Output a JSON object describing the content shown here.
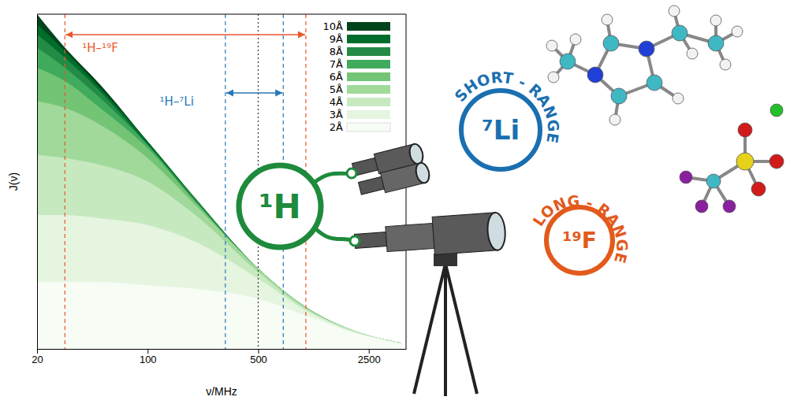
{
  "chart_data": {
    "type": "area",
    "x_label": "ν/MHz",
    "y_label": "J(ν)",
    "log": "x",
    "tick_labels": "x",
    "legend": "top-right",
    "x": [
      20,
      30,
      50,
      100,
      200,
      500,
      1000,
      2000,
      4000
    ],
    "xlim": [
      20,
      4300
    ],
    "xticks": [
      20,
      100,
      500,
      2500
    ],
    "ylim": [
      0,
      1
    ],
    "series": [
      {
        "name": "10Å",
        "color": "#00441b",
        "values": [
          1.0,
          0.9,
          0.79,
          0.62,
          0.45,
          0.24,
          0.125,
          0.055,
          0.018
        ]
      },
      {
        "name": "9Å",
        "color": "#006d2c",
        "values": [
          0.97,
          0.89,
          0.78,
          0.62,
          0.45,
          0.24,
          0.125,
          0.055,
          0.018
        ]
      },
      {
        "name": "8Å",
        "color": "#238b45",
        "values": [
          0.94,
          0.87,
          0.77,
          0.61,
          0.45,
          0.24,
          0.125,
          0.055,
          0.018
        ]
      },
      {
        "name": "7Å",
        "color": "#41ab5d",
        "values": [
          0.9,
          0.84,
          0.75,
          0.61,
          0.44,
          0.24,
          0.125,
          0.055,
          0.018
        ]
      },
      {
        "name": "6Å",
        "color": "#74c476",
        "values": [
          0.84,
          0.8,
          0.72,
          0.6,
          0.44,
          0.24,
          0.125,
          0.055,
          0.018
        ]
      },
      {
        "name": "5Å",
        "color": "#a1d99b",
        "values": [
          0.74,
          0.72,
          0.67,
          0.57,
          0.43,
          0.24,
          0.125,
          0.055,
          0.018
        ]
      },
      {
        "name": "4Å",
        "color": "#c7e9c0",
        "values": [
          0.58,
          0.57,
          0.55,
          0.5,
          0.4,
          0.23,
          0.12,
          0.055,
          0.018
        ]
      },
      {
        "name": "3Å",
        "color": "#e5f5e0",
        "values": [
          0.4,
          0.4,
          0.39,
          0.37,
          0.32,
          0.21,
          0.115,
          0.05,
          0.017
        ]
      },
      {
        "name": "2Å",
        "color": "#f7fcf5",
        "values": [
          0.2,
          0.2,
          0.2,
          0.19,
          0.18,
          0.15,
          0.1,
          0.05,
          0.016
        ]
      }
    ],
    "annotations": [
      {
        "text": "¹H–¹⁹F",
        "color": "#e8572a",
        "line_style": "dashed",
        "x": [
          30,
          1000
        ]
      },
      {
        "text": "¹H–⁷Li",
        "color": "#2878b5",
        "line_style": "dashed",
        "x": [
          310,
          720
        ]
      }
    ],
    "reference_lines": [
      {
        "x": 500,
        "color": "#333333",
        "line_style": "dotted"
      }
    ]
  },
  "illustration": {
    "center": {
      "label": "¹H",
      "color": "#1e8a3c"
    },
    "probes": [
      {
        "label": "⁷Li",
        "caption": "SHORT - RANGE",
        "color": "#1a6fb0"
      },
      {
        "label": "¹⁹F",
        "caption": "LONG - RANGE",
        "color": "#e25a1c"
      }
    ]
  }
}
